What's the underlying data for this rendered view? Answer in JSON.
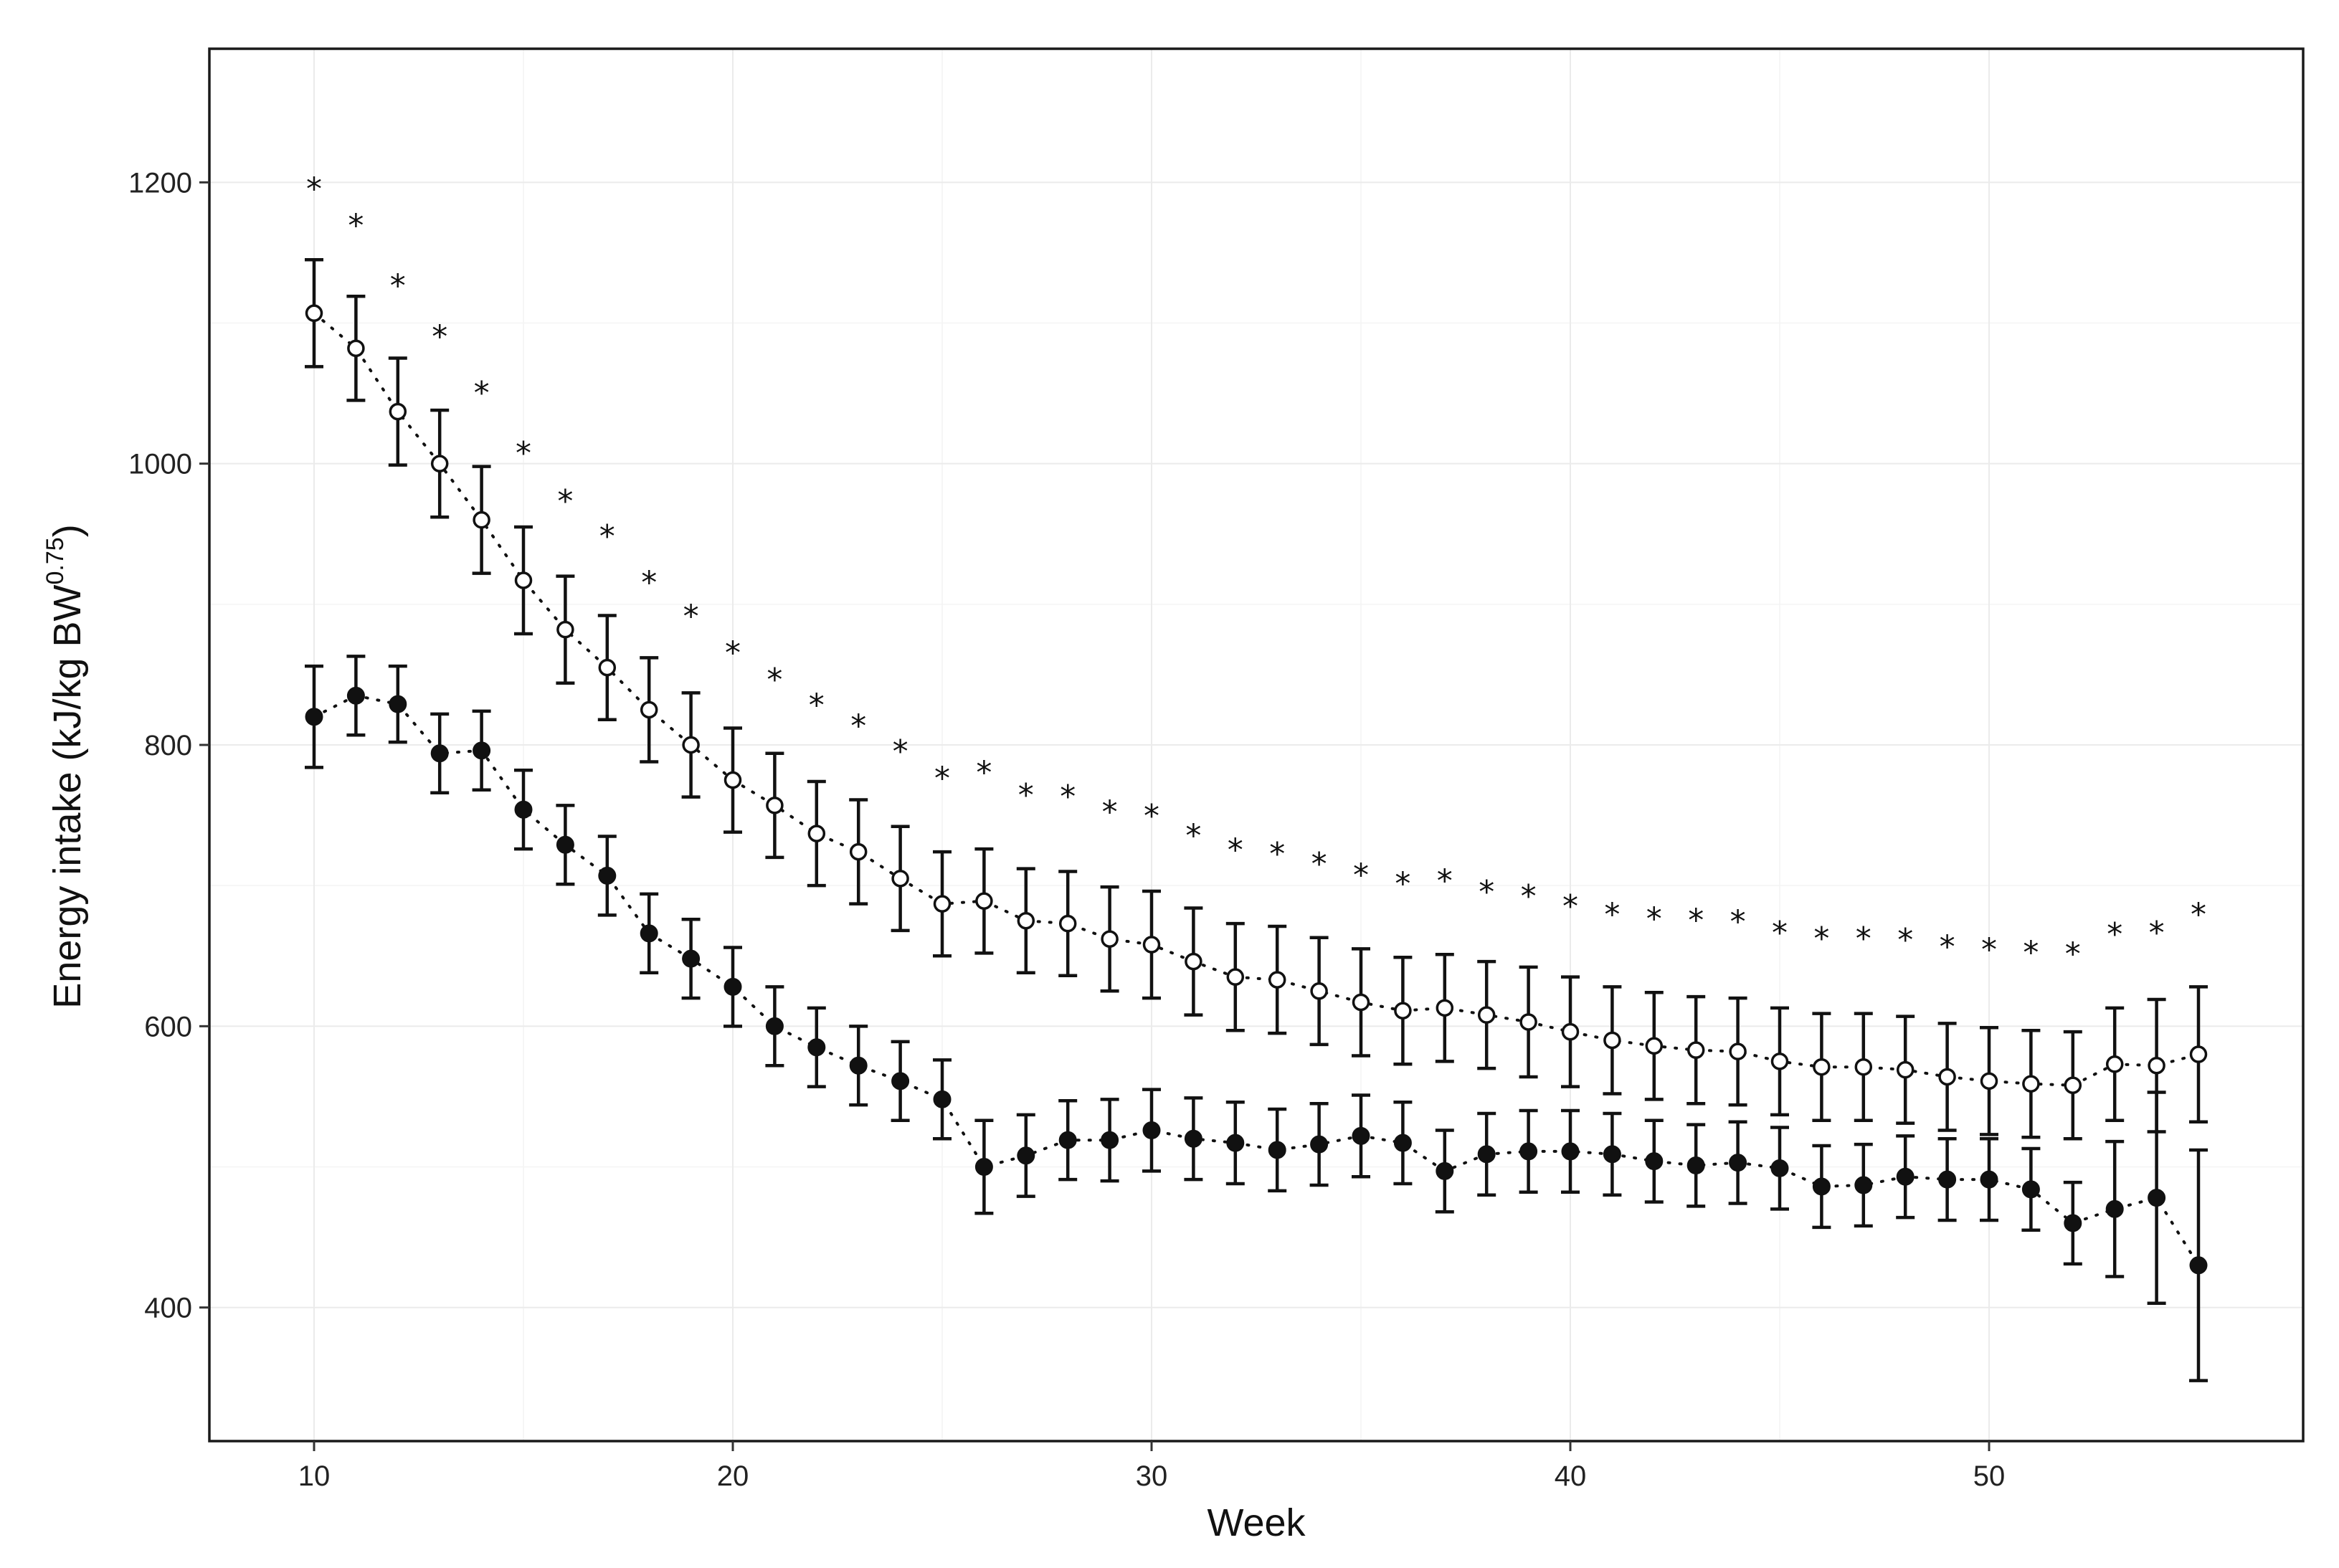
{
  "chart_data": {
    "type": "line",
    "title": "",
    "xlabel": "Week",
    "ylabel": {
      "main": "Energy intake (kJ/kg BW",
      "exponent": "0.75",
      "close": ")"
    },
    "xlim": [
      7.5,
      57.5
    ],
    "ylim": [
      305,
      1295
    ],
    "x_ticks": [
      10,
      20,
      30,
      40,
      50
    ],
    "y_ticks": [
      400,
      600,
      800,
      1000,
      1200
    ],
    "grid": true,
    "legend": "none",
    "x": [
      10,
      11,
      12,
      13,
      14,
      15,
      16,
      17,
      18,
      19,
      20,
      21,
      22,
      23,
      24,
      25,
      26,
      27,
      28,
      29,
      30,
      31,
      32,
      33,
      34,
      35,
      36,
      37,
      38,
      39,
      40,
      41,
      42,
      43,
      44,
      45,
      46,
      47,
      48,
      49,
      50,
      51,
      52,
      53,
      54,
      55
    ],
    "series": [
      {
        "marker": "open-circle",
        "values": [
          1107,
          1082,
          1037,
          1000,
          960,
          917,
          882,
          855,
          825,
          800,
          775,
          757,
          737,
          724,
          705,
          687,
          689,
          675,
          673,
          662,
          658,
          646,
          635,
          633,
          625,
          617,
          611,
          613,
          608,
          603,
          596,
          590,
          586,
          583,
          582,
          575,
          571,
          571,
          569,
          564,
          561,
          559,
          558,
          573,
          572,
          580
        ],
        "error": [
          38,
          37,
          38,
          38,
          38,
          38,
          38,
          37,
          37,
          37,
          37,
          37,
          37,
          37,
          37,
          37,
          37,
          37,
          37,
          37,
          38,
          38,
          38,
          38,
          38,
          38,
          38,
          38,
          38,
          39,
          39,
          38,
          38,
          38,
          38,
          38,
          38,
          38,
          38,
          38,
          38,
          38,
          38,
          40,
          47,
          48
        ]
      },
      {
        "marker": "filled-circle",
        "values": [
          820,
          835,
          829,
          794,
          796,
          754,
          729,
          707,
          666,
          648,
          628,
          600,
          585,
          572,
          561,
          548,
          500,
          508,
          519,
          519,
          526,
          520,
          517,
          512,
          516,
          522,
          517,
          497,
          509,
          511,
          511,
          509,
          504,
          501,
          503,
          499,
          486,
          487,
          493,
          491,
          491,
          484,
          460,
          470,
          478,
          430
        ],
        "error": [
          36,
          28,
          27,
          28,
          28,
          28,
          28,
          28,
          28,
          28,
          28,
          28,
          28,
          28,
          28,
          28,
          33,
          29,
          28,
          29,
          29,
          29,
          29,
          29,
          29,
          29,
          29,
          29,
          29,
          29,
          29,
          29,
          29,
          29,
          29,
          29,
          29,
          29,
          29,
          29,
          29,
          29,
          29,
          48,
          75,
          82
        ]
      }
    ],
    "significance": {
      "symbol": "*",
      "y": [
        1200,
        1174,
        1131,
        1095,
        1055,
        1012,
        978,
        953,
        920,
        896,
        870,
        851,
        833,
        818,
        800,
        781,
        785,
        769,
        768,
        757,
        754,
        740,
        730,
        727,
        720,
        712,
        706,
        708,
        700,
        697,
        690,
        684,
        681,
        680,
        679,
        671,
        667,
        667,
        666,
        661,
        659,
        657,
        656,
        670,
        671,
        684
      ]
    }
  }
}
